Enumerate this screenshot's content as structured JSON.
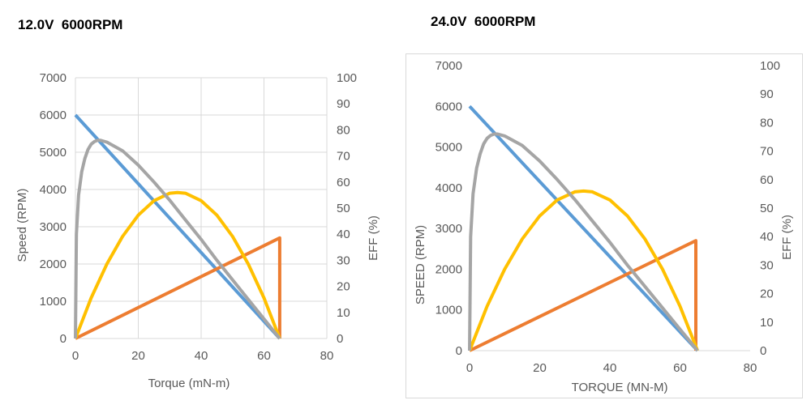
{
  "panels": [
    {
      "title": "12.0V  6000RPM",
      "chart_data": {
        "type": "line",
        "xlabel": "Torque (mN-m)",
        "ylabel": "Speed (RPM)",
        "y2label": "EFF (%)",
        "xlim": [
          0,
          80
        ],
        "ylim": [
          0,
          7000
        ],
        "y2lim": [
          0,
          100
        ],
        "xticks": [
          0,
          20,
          40,
          60,
          80
        ],
        "yticks": [
          0,
          1000,
          2000,
          3000,
          4000,
          5000,
          6000,
          7000
        ],
        "y2ticks": [
          0,
          10,
          20,
          30,
          40,
          50,
          60,
          70,
          80,
          90,
          100
        ],
        "grid": true,
        "series": [
          {
            "axis": "left",
            "color": "#5b9bd5",
            "x": [
              0,
              65
            ],
            "y": [
              6000,
              0
            ]
          },
          {
            "axis": "left",
            "color": "#ed7d31",
            "x": [
              0,
              65,
              65
            ],
            "y": [
              0,
              2700,
              0
            ]
          },
          {
            "axis": "left",
            "color": "#ffc000",
            "x": [
              0,
              5,
              10,
              15,
              20,
              25,
              30,
              32.5,
              35,
              40,
              45,
              50,
              55,
              60,
              65
            ],
            "y": [
              0,
              1090,
              2000,
              2740,
              3310,
              3700,
              3900,
              3920,
              3900,
              3700,
              3310,
              2740,
              2000,
              1090,
              0
            ]
          },
          {
            "axis": "right",
            "color": "#a5a5a5",
            "x": [
              0,
              0.3,
              1,
              2,
              3,
              4,
              5,
              6,
              7,
              8,
              10,
              15,
              20,
              25,
              30,
              35,
              40,
              45,
              50,
              55,
              60,
              63,
              65
            ],
            "y": [
              0,
              40,
              55,
              64,
              69,
              72.5,
              74.5,
              75.5,
              76,
              76,
              75.3,
              72,
              66.5,
              60,
              53,
              45.5,
              38,
              30,
              22.5,
              15,
              7.5,
              3,
              0
            ]
          }
        ]
      }
    },
    {
      "title": "24.0V  6000RPM",
      "chart_data": {
        "type": "line",
        "xlabel": "TORQUE (MN-M)",
        "ylabel": "SPEED (RPM)",
        "y2label": "EFF (%)",
        "xlim": [
          0,
          80
        ],
        "ylim": [
          0,
          7000
        ],
        "y2lim": [
          0,
          100
        ],
        "xticks": [
          0,
          20,
          40,
          60,
          80
        ],
        "yticks": [
          0,
          1000,
          2000,
          3000,
          4000,
          5000,
          6000,
          7000
        ],
        "y2ticks": [
          0,
          10,
          20,
          30,
          40,
          50,
          60,
          70,
          80,
          90,
          100
        ],
        "grid": false,
        "series": [
          {
            "axis": "left",
            "color": "#5b9bd5",
            "x": [
              0,
              65
            ],
            "y": [
              6000,
              0
            ]
          },
          {
            "axis": "left",
            "color": "#ed7d31",
            "x": [
              0,
              64.5,
              64.5
            ],
            "y": [
              0,
              2700,
              0
            ]
          },
          {
            "axis": "left",
            "color": "#ffc000",
            "x": [
              0,
              5,
              10,
              15,
              20,
              25,
              30,
              32.5,
              35,
              40,
              45,
              50,
              55,
              60,
              65
            ],
            "y": [
              0,
              1090,
              2000,
              2740,
              3310,
              3700,
              3900,
              3920,
              3900,
              3700,
              3310,
              2740,
              2000,
              1090,
              0
            ]
          },
          {
            "axis": "right",
            "color": "#a5a5a5",
            "x": [
              0,
              0.3,
              1,
              2,
              3,
              4,
              5,
              6,
              7,
              8,
              10,
              15,
              20,
              25,
              30,
              35,
              40,
              45,
              50,
              55,
              60,
              63,
              65
            ],
            "y": [
              0,
              40,
              55,
              64,
              69,
              72.5,
              74.5,
              75.5,
              76,
              76,
              75.3,
              72,
              66.5,
              60,
              53,
              45.5,
              38,
              30,
              22.5,
              15,
              7.5,
              3,
              0
            ]
          }
        ]
      }
    }
  ]
}
